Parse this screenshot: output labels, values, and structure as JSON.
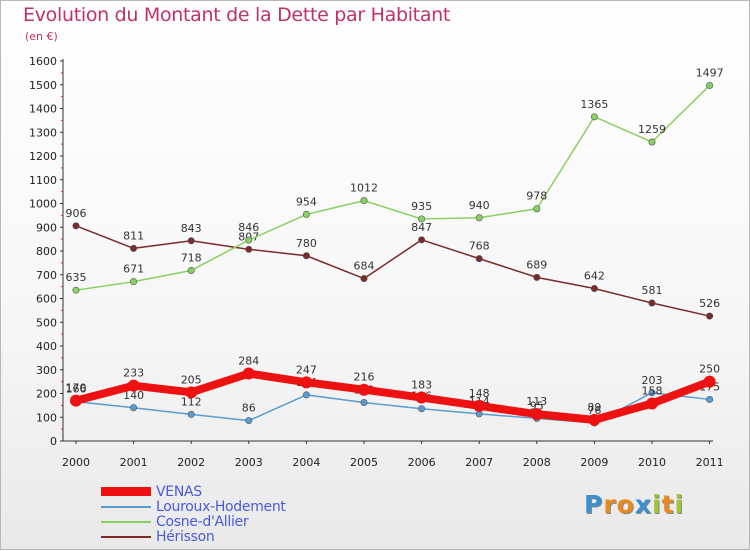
{
  "chart_data": {
    "type": "line",
    "title": "Evolution du Montant de la Dette par Habitant",
    "subtitle": "(en €)",
    "x": [
      "2000",
      "2001",
      "2002",
      "2003",
      "2004",
      "2005",
      "2006",
      "2007",
      "2008",
      "2009",
      "2010",
      "2011"
    ],
    "ylim": [
      0,
      1600
    ],
    "yticks": [
      0,
      100,
      200,
      300,
      400,
      500,
      600,
      700,
      800,
      900,
      1000,
      1100,
      1200,
      1300,
      1400,
      1500,
      1600
    ],
    "grid": false,
    "legend_position": "bottom-left",
    "series": [
      {
        "name": "Hérisson",
        "color": "#7a2a2a",
        "values": [
          906,
          811,
          843,
          807,
          780,
          684,
          847,
          768,
          689,
          642,
          581,
          526
        ]
      },
      {
        "name": "Cosne-d'Allier",
        "color": "#88d060",
        "values": [
          635,
          671,
          718,
          846,
          954,
          1012,
          935,
          940,
          978,
          1365,
          1259,
          1497
        ]
      },
      {
        "name": "Louroux-Hodement",
        "color": "#5a9bd0",
        "values": [
          166,
          140,
          112,
          86,
          194,
          162,
          136,
          114,
          95,
          76,
          203,
          175
        ]
      },
      {
        "name": "VENAS",
        "color": "#ee1111",
        "values": [
          170,
          233,
          205,
          284,
          247,
          216,
          183,
          148,
          113,
          89,
          158,
          250
        ]
      }
    ]
  },
  "legend": {
    "items": [
      {
        "name": "VENAS",
        "color": "#ee1111"
      },
      {
        "name": "Louroux-Hodement",
        "color": "#5a9bd0"
      },
      {
        "name": "Cosne-d'Allier",
        "color": "#88d060"
      },
      {
        "name": "Hérisson",
        "color": "#7a2a2a"
      }
    ]
  },
  "logo": {
    "text": "Proxiti",
    "letters": [
      "P",
      "r",
      "o",
      "x",
      "i",
      "t",
      "i"
    ],
    "colors": [
      "#3a8fd0",
      "#e88a20",
      "#e88a20",
      "#3a8fd0",
      "#9ac83a",
      "#e88a20",
      "#9ac83a"
    ]
  }
}
